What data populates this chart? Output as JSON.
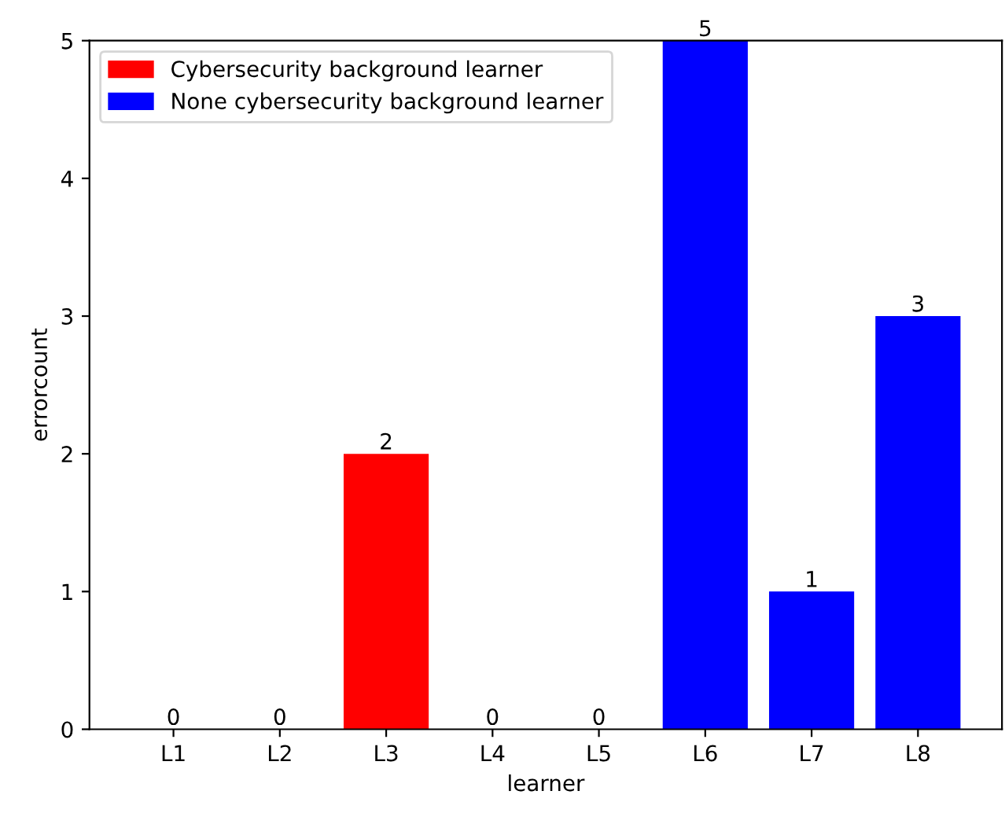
{
  "chart_data": {
    "type": "bar",
    "xlabel": "learner",
    "ylabel": "errorcount",
    "categories": [
      "L1",
      "L2",
      "L3",
      "L4",
      "L5",
      "L6",
      "L7",
      "L8"
    ],
    "series": [
      {
        "name": "Cybersecurity background learner",
        "color": "#ff0000",
        "values": [
          0,
          0,
          2,
          0,
          0,
          null,
          null,
          null
        ]
      },
      {
        "name": "None cybersecurity background learner",
        "color": "#0000ff",
        "values": [
          null,
          null,
          null,
          null,
          null,
          5,
          1,
          3
        ]
      }
    ],
    "ylim": [
      0,
      5
    ],
    "yticks": [
      0,
      1,
      2,
      3,
      4,
      5
    ],
    "grid": false,
    "legend": "top left",
    "data_labels": true
  }
}
